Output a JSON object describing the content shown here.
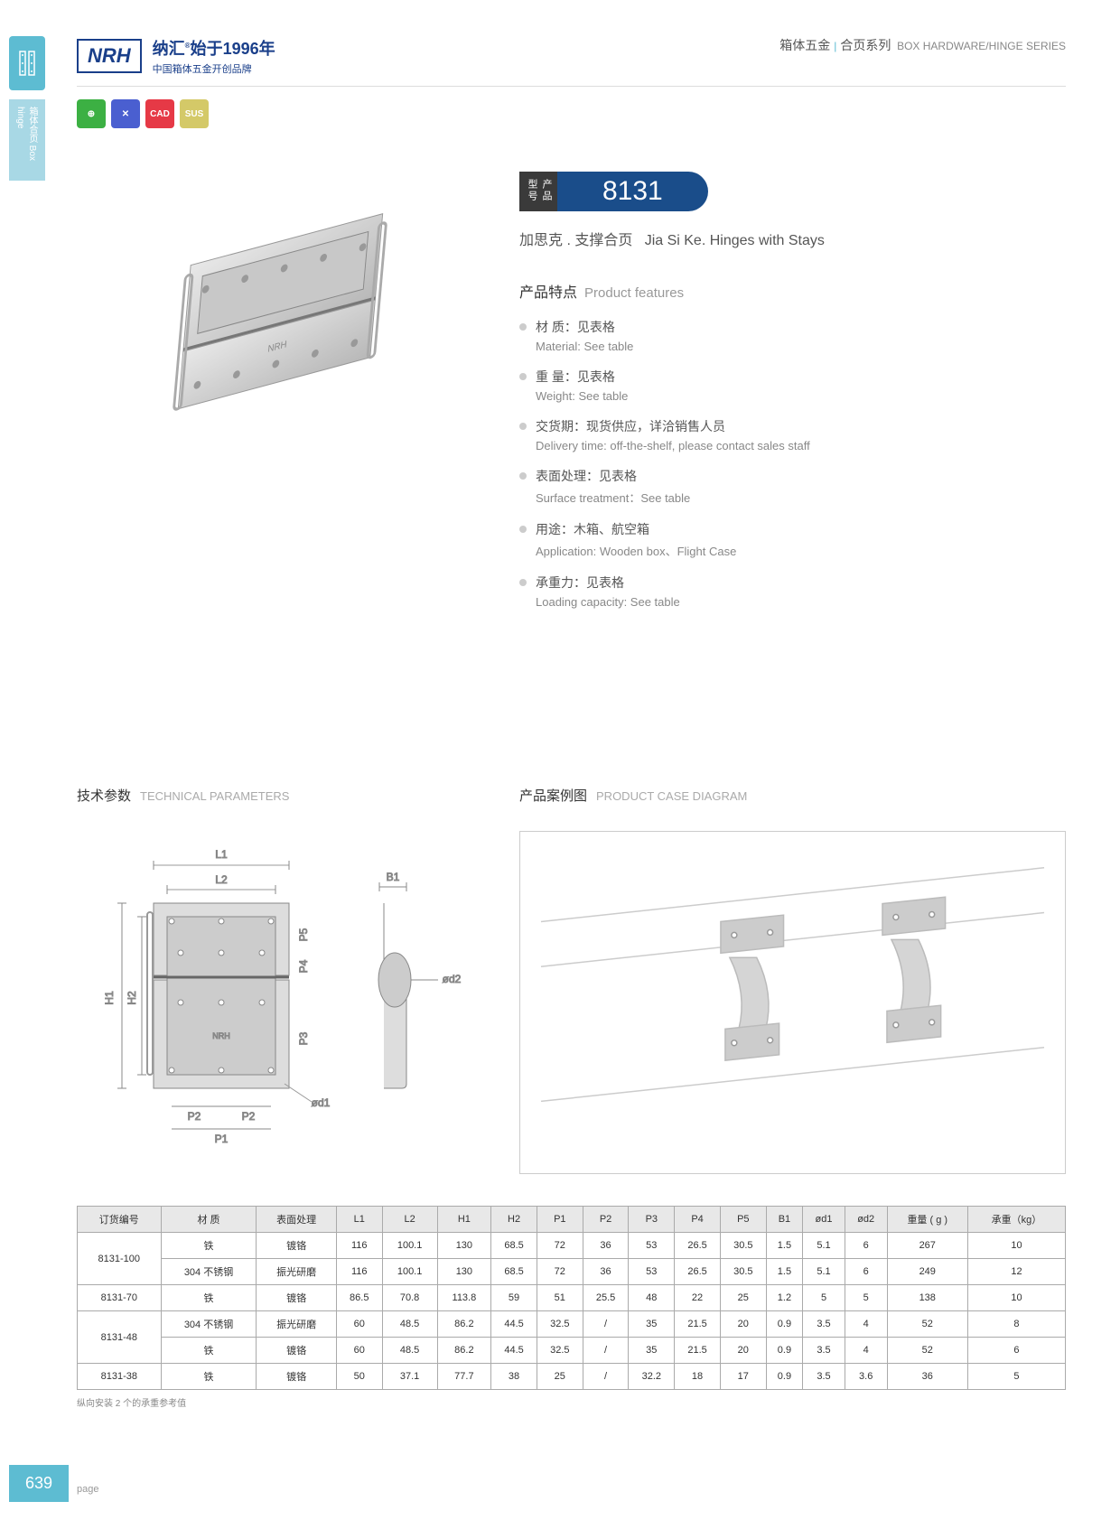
{
  "header": {
    "brand": "NRH",
    "brandCn": "纳汇",
    "brandSlogan": "始于1996年",
    "brandSub": "中国箱体五金开创品牌",
    "catCn": "箱体五金",
    "catCn2": "合页系列",
    "catEn": "BOX HARDWARE/HINGE SERIES"
  },
  "sideTab": "箱体合页 Box hinge",
  "icons": [
    "⊕",
    "✕",
    "CAD",
    "SUS"
  ],
  "model": {
    "label": "产品型号",
    "number": "8131",
    "subCn": "加思克 . 支撑合页",
    "subEn": "Jia Si Ke. Hinges with Stays"
  },
  "features": {
    "title": "产品特点",
    "titleEn": "Product features",
    "items": [
      {
        "cn": "材  质：见表格",
        "en": "Material: See table"
      },
      {
        "cn": "重  量：见表格",
        "en": "Weight: See table"
      },
      {
        "cn": "交货期：现货供应，详洽销售人员",
        "en": "Delivery time: off-the-shelf, please contact sales staff"
      },
      {
        "cn": "表面处理：见表格",
        "en": "Surface treatment：See table"
      },
      {
        "cn": "用途：木箱、航空箱",
        "en": "Application: Wooden box、Flight Case"
      },
      {
        "cn": "承重力：见表格",
        "en": "Loading capacity: See table"
      }
    ]
  },
  "techTitle": {
    "cn": "技术参数",
    "en": "TECHNICAL PARAMETERS"
  },
  "caseTitle": {
    "cn": "产品案例图",
    "en": "PRODUCT CASE DIAGRAM"
  },
  "diagramLabels": {
    "L1": "L1",
    "L2": "L2",
    "H1": "H1",
    "H2": "H2",
    "P1": "P1",
    "P2": "P2",
    "P3": "P3",
    "P4": "P4",
    "P5": "P5",
    "B1": "B1",
    "od1": "ød1",
    "od2": "ød2"
  },
  "table": {
    "columns": [
      "订货编号",
      "材    质",
      "表面处理",
      "L1",
      "L2",
      "H1",
      "H2",
      "P1",
      "P2",
      "P3",
      "P4",
      "P5",
      "B1",
      "ød1",
      "ød2",
      "重量 ( g )",
      "承重（kg）"
    ],
    "rows": [
      [
        "8131-100",
        "铁",
        "镀铬",
        "116",
        "100.1",
        "130",
        "68.5",
        "72",
        "36",
        "53",
        "26.5",
        "30.5",
        "1.5",
        "5.1",
        "6",
        "267",
        "10"
      ],
      [
        "",
        "304 不锈钢",
        "振光研磨",
        "116",
        "100.1",
        "130",
        "68.5",
        "72",
        "36",
        "53",
        "26.5",
        "30.5",
        "1.5",
        "5.1",
        "6",
        "249",
        "12"
      ],
      [
        "8131-70",
        "铁",
        "镀铬",
        "86.5",
        "70.8",
        "113.8",
        "59",
        "51",
        "25.5",
        "48",
        "22",
        "25",
        "1.2",
        "5",
        "5",
        "138",
        "10"
      ],
      [
        "8131-48",
        "304 不锈钢",
        "振光研磨",
        "60",
        "48.5",
        "86.2",
        "44.5",
        "32.5",
        "/",
        "35",
        "21.5",
        "20",
        "0.9",
        "3.5",
        "4",
        "52",
        "8"
      ],
      [
        "",
        "铁",
        "镀铬",
        "60",
        "48.5",
        "86.2",
        "44.5",
        "32.5",
        "/",
        "35",
        "21.5",
        "20",
        "0.9",
        "3.5",
        "4",
        "52",
        "6"
      ],
      [
        "8131-38",
        "铁",
        "镀铬",
        "50",
        "37.1",
        "77.7",
        "38",
        "25",
        "/",
        "32.2",
        "18",
        "17",
        "0.9",
        "3.5",
        "3.6",
        "36",
        "5"
      ]
    ],
    "rowspans": [
      [
        0,
        2
      ],
      [
        3,
        2
      ]
    ],
    "note": "纵向安装 2 个的承重参考值"
  },
  "pageNum": "639",
  "pageLabel": "page"
}
